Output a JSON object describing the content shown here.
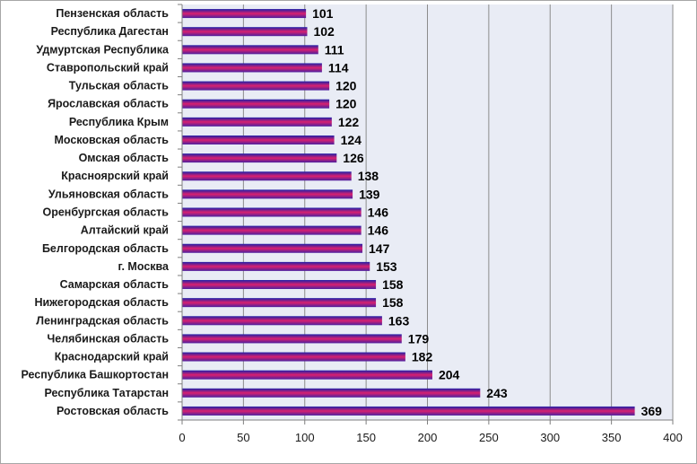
{
  "chart_data": {
    "type": "bar",
    "orientation": "horizontal",
    "categories": [
      "Пензенская область",
      "Республика Дагестан",
      "Удмуртская Республика",
      "Ставропольский край",
      "Тульская область",
      "Ярославская область",
      "Республика Крым",
      "Московская область",
      "Омская область",
      "Красноярский край",
      "Ульяновская область",
      "Оренбургская область",
      "Алтайский край",
      "Белгородская область",
      "г. Москва",
      "Самарская область",
      "Нижегородская область",
      "Ленинградская область",
      "Челябинская область",
      "Краснодарский край",
      "Республика Башкортостан",
      "Республика Татарстан",
      "Ростовская область"
    ],
    "values": [
      101,
      102,
      111,
      114,
      120,
      120,
      122,
      124,
      126,
      138,
      139,
      146,
      146,
      147,
      153,
      158,
      158,
      163,
      179,
      182,
      204,
      243,
      369
    ],
    "xlim": [
      0,
      400
    ],
    "x_ticks": [
      "0",
      "50",
      "100",
      "150",
      "200",
      "250",
      "300",
      "350",
      "400"
    ],
    "grid": "vertical",
    "legend": "none",
    "colors": {
      "plot_background": "#e9ecf5",
      "gridline": "#8c8c8c",
      "bar_top": "#1f1fa8",
      "bar_mid": "#d9206f",
      "bar_bottom": "#4b1fa0",
      "axis": "#7f7f7f"
    }
  }
}
